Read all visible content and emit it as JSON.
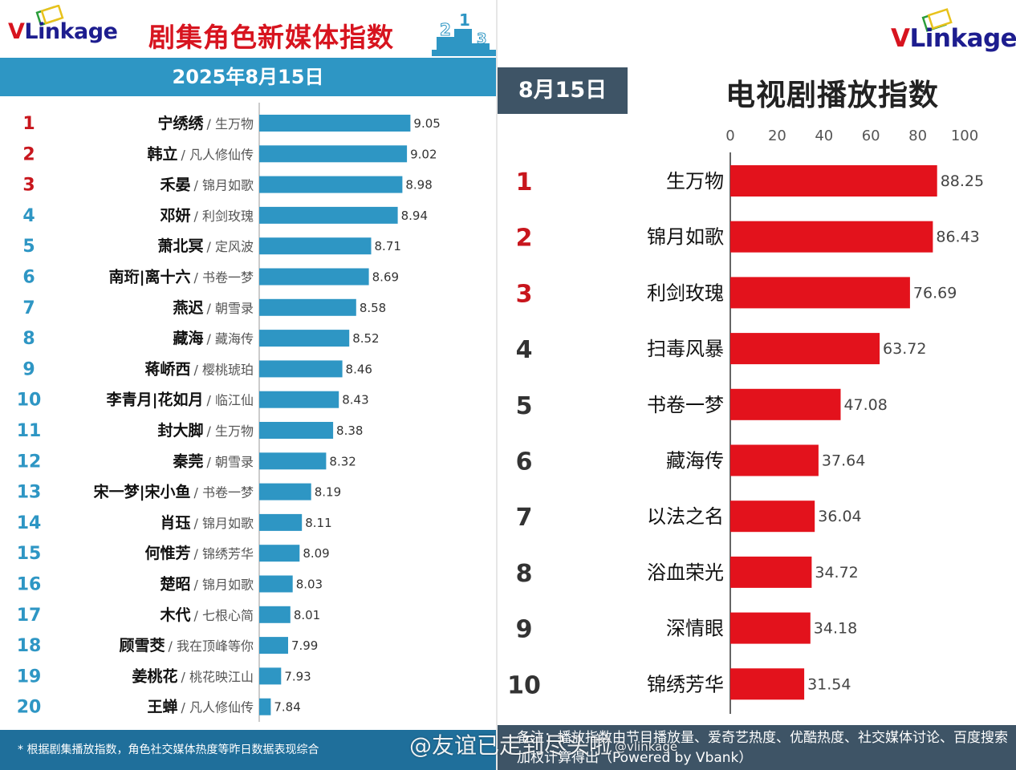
{
  "left": {
    "logo": {
      "v": "V",
      "rest": "Linkage"
    },
    "title": "剧集角色新媒体指数",
    "date": "2025年8月15日",
    "footnote": "* 根据剧集播放指数，角色社交媒体热度等昨日数据表现综合",
    "colors": {
      "bar": "#2e96c4",
      "rank_top": "#c8161d",
      "rank_rest": "#2e96c4",
      "header": "#2e96c4",
      "footer": "#1f6f9b"
    },
    "chart_data": {
      "type": "bar",
      "orientation": "horizontal",
      "ranks": [
        "1",
        "2",
        "3",
        "4",
        "5",
        "6",
        "7",
        "8",
        "9",
        "10",
        "11",
        "12",
        "13",
        "14",
        "15",
        "16",
        "17",
        "18",
        "19",
        "20"
      ],
      "characters": [
        "宁绣绣",
        "韩立",
        "禾晏",
        "邓妍",
        "萧北冥",
        "南珩|离十六",
        "燕迟",
        "藏海",
        "蒋峤西",
        "李青月|花如月",
        "封大脚",
        "秦莞",
        "宋一梦|宋小鱼",
        "肖珏",
        "何惟芳",
        "楚昭",
        "木代",
        "顾雪茭",
        "姜桃花",
        "王蝉"
      ],
      "dramas": [
        "/ 生万物",
        "/ 凡人修仙传",
        "/ 锦月如歌",
        "/ 利剑玫瑰",
        "/ 定风波",
        "/ 书卷一梦",
        "/ 朝雪录",
        "/ 藏海传",
        "/ 樱桃琥珀",
        "/ 临江仙",
        "/ 生万物",
        "/ 朝雪录",
        "/ 书卷一梦",
        "/ 锦月如歌",
        "/ 锦绣芳华",
        "/ 锦月如歌",
        "/ 七根心简",
        "/ 我在顶峰等你",
        "/ 桃花映江山",
        "/ 凡人修仙传"
      ],
      "values": [
        9.05,
        9.02,
        8.98,
        8.94,
        8.71,
        8.69,
        8.58,
        8.52,
        8.46,
        8.43,
        8.38,
        8.32,
        8.19,
        8.11,
        8.09,
        8.03,
        8.01,
        7.99,
        7.93,
        7.84
      ],
      "value_labels": [
        "9.05",
        "9.02",
        "8.98",
        "8.94",
        "8.71",
        "8.69",
        "8.58",
        "8.52",
        "8.46",
        "8.43",
        "8.38",
        "8.32",
        "8.19",
        "8.11",
        "8.09",
        "8.03",
        "8.01",
        "7.99",
        "7.93",
        "7.84"
      ],
      "xlim": [
        7.74,
        9.2
      ]
    }
  },
  "right": {
    "logo": {
      "v": "V",
      "rest": "Linkage"
    },
    "date": "8月15日",
    "title": "电视剧播放指数",
    "footnote": "备注：播放指数由节目播放量、爱奇艺热度、优酷热度、社交媒体讨论、百度搜索加权计算得出（Powered by Vbank）",
    "colors": {
      "bar": "#e3121c",
      "rank_top": "#c8161d",
      "rank_rest": "#333333",
      "date_tab": "#3e5466",
      "footer": "#3e5466"
    },
    "chart_data": {
      "type": "bar",
      "orientation": "horizontal",
      "ranks": [
        "1",
        "2",
        "3",
        "4",
        "5",
        "6",
        "7",
        "8",
        "9",
        "10"
      ],
      "categories": [
        "生万物",
        "锦月如歌",
        "利剑玫瑰",
        "扫毒风暴",
        "书卷一梦",
        "藏海传",
        "以法之名",
        "浴血荣光",
        "深情眼",
        "锦绣芳华"
      ],
      "values": [
        88.25,
        86.43,
        76.69,
        63.72,
        47.08,
        37.64,
        36.04,
        34.72,
        34.18,
        31.54
      ],
      "value_labels": [
        "88.25",
        "86.43",
        "76.69",
        "63.72",
        "47.08",
        "37.64",
        "36.04",
        "34.72",
        "34.18",
        "31.54"
      ],
      "x_ticks": [
        "0",
        "20",
        "40",
        "60",
        "80",
        "100"
      ],
      "xlim": [
        0,
        100
      ]
    }
  },
  "watermark": {
    "text": "@友谊已走到尽头啦",
    "sub": "@vlinkage"
  }
}
